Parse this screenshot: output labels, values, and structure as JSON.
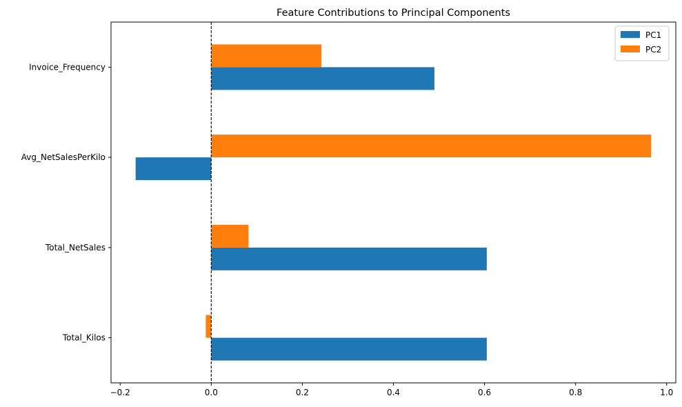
{
  "chart_data": {
    "type": "bar",
    "orientation": "horizontal",
    "title": "Feature Contributions to Principal Components",
    "xlabel": "",
    "ylabel": "",
    "categories": [
      "Total_Kilos",
      "Total_NetSales",
      "Avg_NetSalesPerKilo",
      "Invoice_Frequency"
    ],
    "series": [
      {
        "name": "PC1",
        "color": "#1f77b4",
        "values": [
          0.605,
          0.605,
          -0.166,
          0.49
        ]
      },
      {
        "name": "PC2",
        "color": "#ff7f0e",
        "values": [
          -0.012,
          0.082,
          0.966,
          0.242
        ]
      }
    ],
    "xlim": [
      -0.22,
      1.02
    ],
    "xticks": [
      -0.2,
      0.0,
      0.2,
      0.4,
      0.6,
      0.8,
      1.0
    ],
    "xtick_labels": [
      "−0.2",
      "0.0",
      "0.2",
      "0.4",
      "0.6",
      "0.8",
      "1.0"
    ],
    "reference_line": {
      "x": 0.0,
      "style": "dashed",
      "color": "#000000"
    },
    "grid": false,
    "legend": {
      "position": "top-right"
    }
  }
}
